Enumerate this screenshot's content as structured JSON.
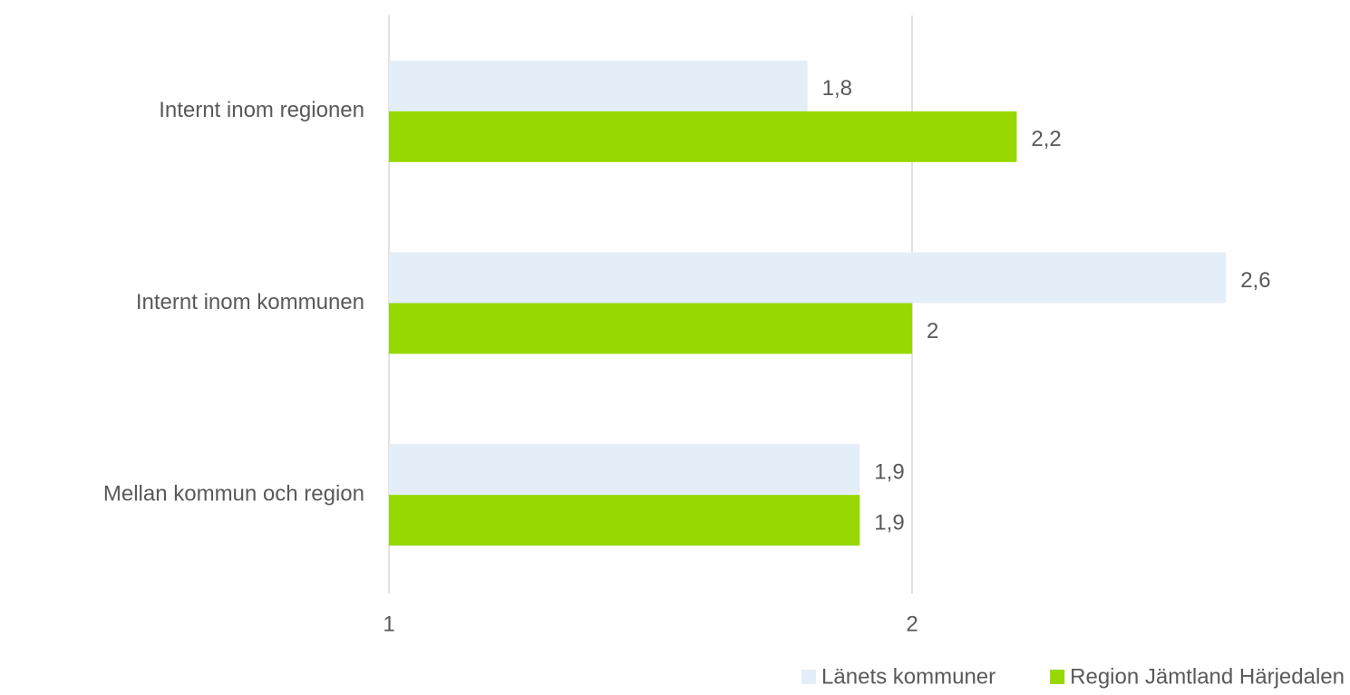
{
  "chart_data": {
    "type": "bar",
    "orientation": "horizontal",
    "categories": [
      "Internt inom regionen",
      "Internt inom kommunen",
      "Mellan kommun och region"
    ],
    "series": [
      {
        "name": "Länets kommuner",
        "color": "#e3eef9",
        "values": [
          1.8,
          2.6,
          1.9
        ],
        "value_labels": [
          "1,8",
          "2,6",
          "1,9"
        ]
      },
      {
        "name": "Region Jämtland Härjedalen",
        "color": "#96d800",
        "values": [
          2.2,
          2,
          1.9
        ],
        "value_labels": [
          "2,2",
          "2",
          "1,9"
        ]
      }
    ],
    "xlim": [
      1,
      2.8
    ],
    "xticks": [
      1,
      2
    ],
    "grid": true,
    "legend": "bottom-right"
  }
}
